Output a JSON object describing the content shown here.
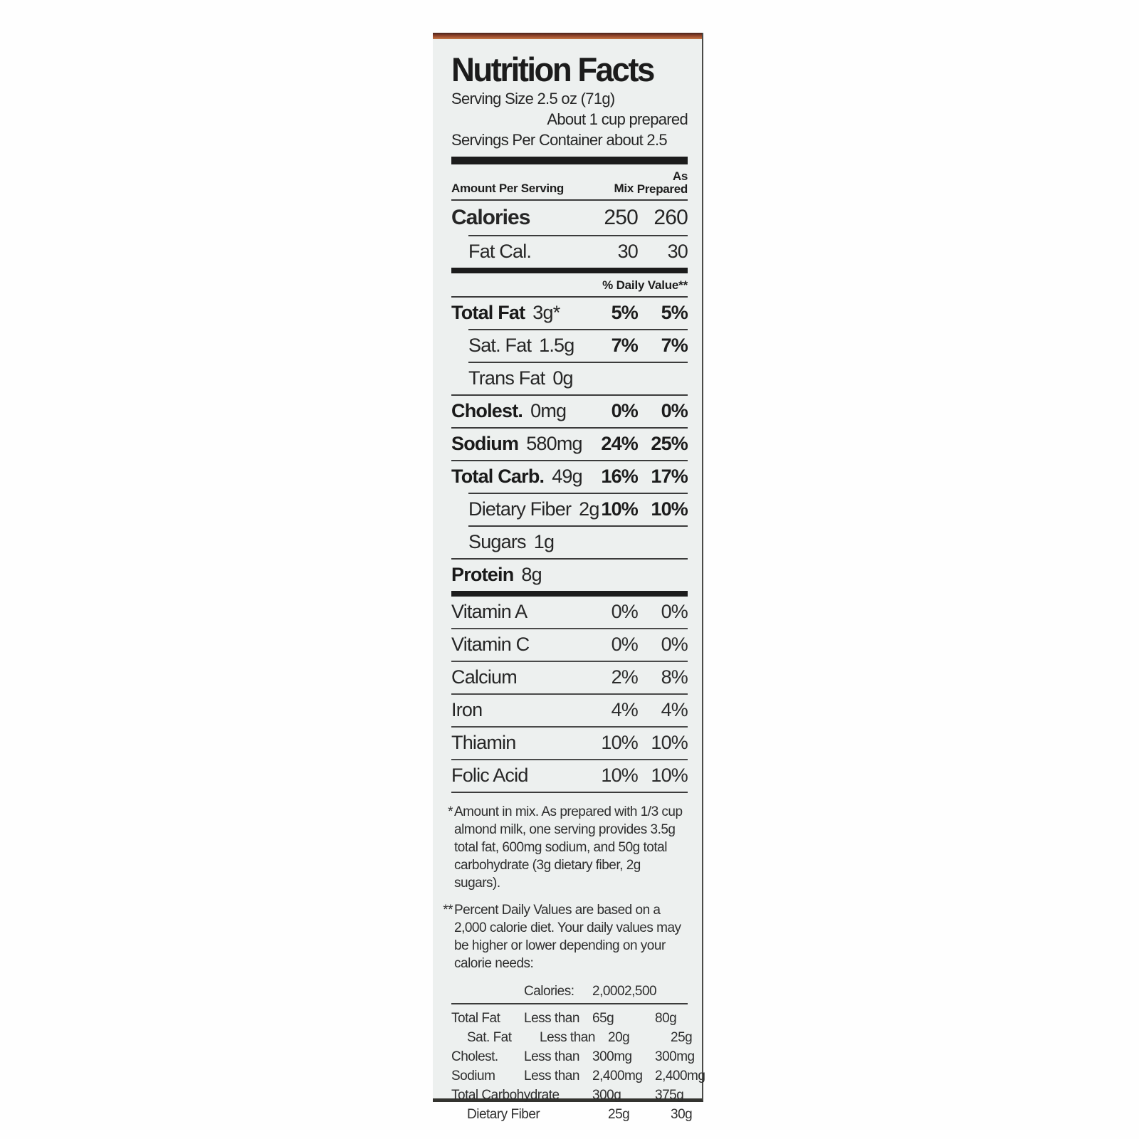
{
  "label": {
    "title": "Nutrition Facts",
    "serving_size": "Serving Size 2.5 oz (71g)",
    "serving_prepared": "About 1 cup prepared",
    "servings_per_container": "Servings Per Container about 2.5",
    "columns": {
      "amount": "Amount Per Serving",
      "mix": "Mix",
      "prepared": "As\nPrepared"
    },
    "calorie_rows": [
      {
        "label": "Calories",
        "mix": "250",
        "prepared": "260"
      },
      {
        "label": "Fat Cal.",
        "mix": "30",
        "prepared": "30"
      }
    ],
    "daily_value_header": "% Daily Value**",
    "nutrients": [
      {
        "label": "Total Fat",
        "amount": "3g*",
        "mix": "5%",
        "prepared": "5%"
      },
      {
        "label": "Sat. Fat",
        "amount": "1.5g",
        "mix": "7%",
        "prepared": "7%"
      },
      {
        "label": "Trans Fat",
        "amount": "0g",
        "mix": "",
        "prepared": ""
      },
      {
        "label": "Cholest.",
        "amount": "0mg",
        "mix": "0%",
        "prepared": "0%"
      },
      {
        "label": "Sodium",
        "amount": "580mg",
        "mix": "24%",
        "prepared": "25%"
      },
      {
        "label": "Total Carb.",
        "amount": "49g",
        "mix": "16%",
        "prepared": "17%"
      },
      {
        "label": "Dietary Fiber",
        "amount": "2g",
        "mix": "10%",
        "prepared": "10%"
      },
      {
        "label": "Sugars",
        "amount": "1g",
        "mix": "",
        "prepared": ""
      },
      {
        "label": "Protein",
        "amount": "8g",
        "mix": "",
        "prepared": ""
      }
    ],
    "vitamins": [
      {
        "label": "Vitamin A",
        "mix": "0%",
        "prepared": "0%"
      },
      {
        "label": "Vitamin C",
        "mix": "0%",
        "prepared": "0%"
      },
      {
        "label": "Calcium",
        "mix": "2%",
        "prepared": "8%"
      },
      {
        "label": "Iron",
        "mix": "4%",
        "prepared": "4%"
      },
      {
        "label": "Thiamin",
        "mix": "10%",
        "prepared": "10%"
      },
      {
        "label": "Folic Acid",
        "mix": "10%",
        "prepared": "10%"
      }
    ],
    "footnote1_marker": "*",
    "footnote1": "Amount in mix. As prepared with 1/3 cup almond milk, one serving provides 3.5g total fat, 600mg sodium, and 50g total carbohydrate (3g dietary fiber, 2g sugars).",
    "footnote2_marker": "**",
    "footnote2": "Percent Daily Values are based on a 2,000 calorie diet. Your daily values may be higher or lower depending on your calorie needs:",
    "dv_table": {
      "header": {
        "label": "Calories:",
        "c2000": "2,000",
        "c2500": "2,500"
      },
      "rows": [
        {
          "label": "Total Fat",
          "qualifier": "Less than",
          "c2000": "65g",
          "c2500": "80g"
        },
        {
          "label": "Sat. Fat",
          "qualifier": "Less than",
          "c2000": "20g",
          "c2500": "25g"
        },
        {
          "label": "Cholest.",
          "qualifier": "Less than",
          "c2000": "300mg",
          "c2500": "300mg"
        },
        {
          "label": "Sodium",
          "qualifier": "Less than",
          "c2000": "2,400mg",
          "c2500": "2,400mg"
        },
        {
          "label": "Total Carbohydrate",
          "qualifier": "",
          "c2000": "300g",
          "c2500": "375g"
        },
        {
          "label": "Dietary Fiber",
          "qualifier": "",
          "c2000": "25g",
          "c2500": "30g"
        }
      ]
    },
    "colors": {
      "label_background": "#edf0ef",
      "text": "#262626",
      "stripe_brown": "#8e4128",
      "bar_black": "#1c1c1c"
    }
  }
}
